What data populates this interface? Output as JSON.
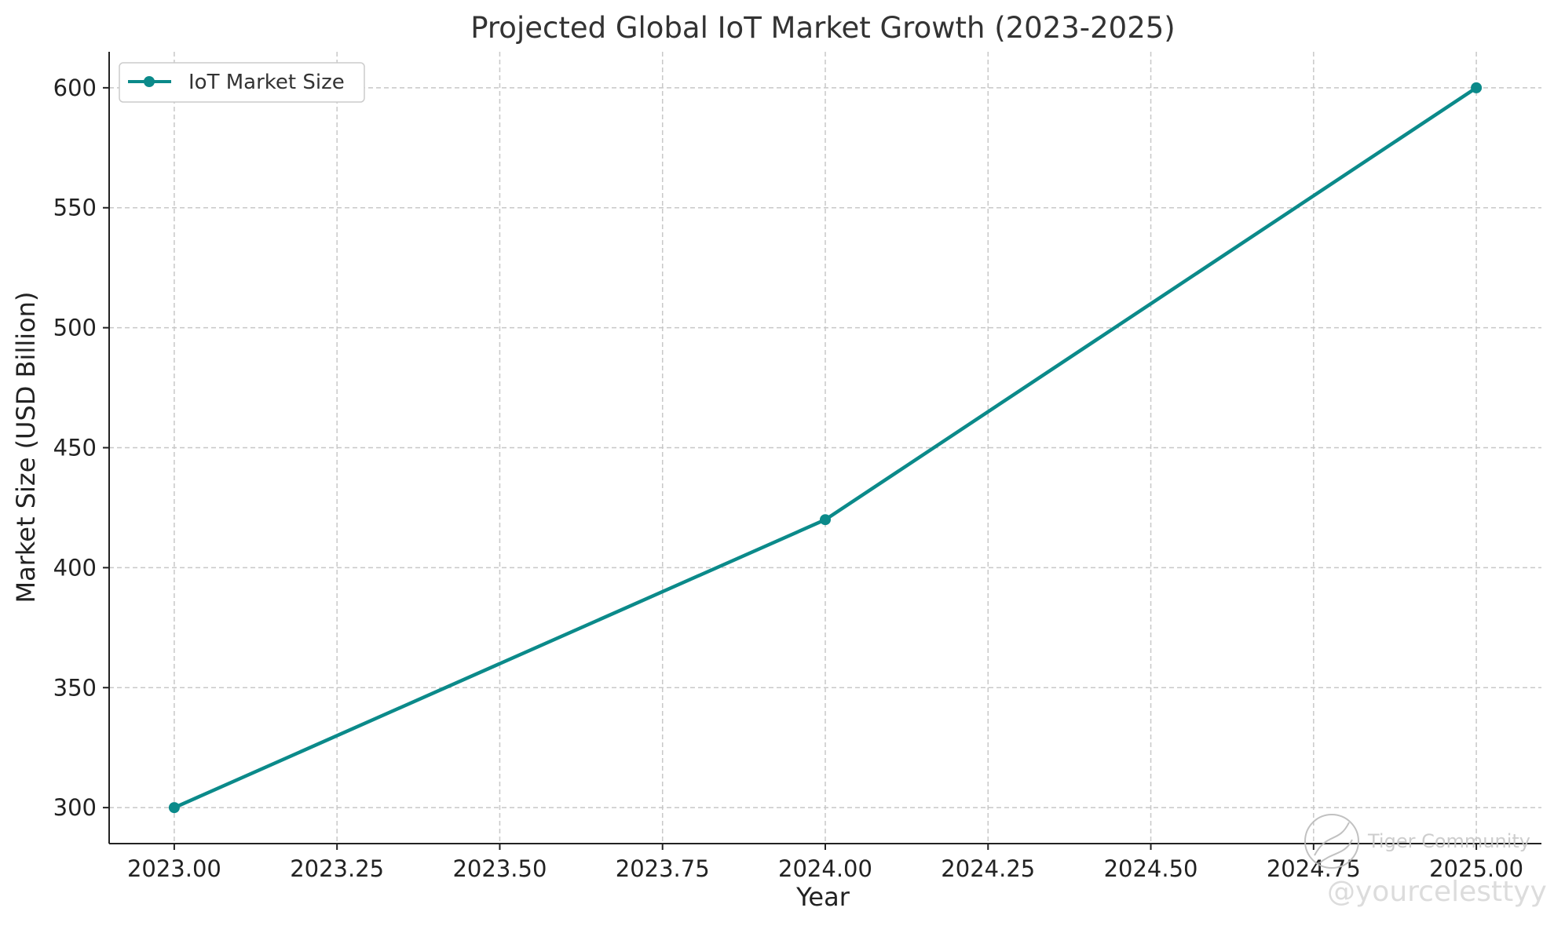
{
  "chart_data": {
    "type": "line",
    "title": "Projected Global IoT Market Growth (2023-2025)",
    "xlabel": "Year",
    "ylabel": "Market Size (USD Billion)",
    "x": [
      2023,
      2024,
      2025
    ],
    "series": [
      {
        "name": "IoT Market Size",
        "values": [
          300,
          420,
          600
        ],
        "color": "#0b8a8a"
      }
    ],
    "xlim": [
      2022.9,
      2025.1
    ],
    "ylim": [
      285,
      615
    ],
    "xticks": [
      2023.0,
      2023.25,
      2023.5,
      2023.75,
      2024.0,
      2024.25,
      2024.5,
      2024.75,
      2025.0
    ],
    "xtick_labels": [
      "2023.00",
      "2023.25",
      "2023.50",
      "2023.75",
      "2024.00",
      "2024.25",
      "2024.50",
      "2024.75",
      "2025.00"
    ],
    "yticks": [
      300,
      350,
      400,
      450,
      500,
      550,
      600
    ],
    "ytick_labels": [
      "300",
      "350",
      "400",
      "450",
      "500",
      "550",
      "600"
    ],
    "grid": true,
    "legend_position": "top-left"
  },
  "watermark": {
    "line1": "Tiger Community",
    "line2": "@yourcelesttyy"
  }
}
